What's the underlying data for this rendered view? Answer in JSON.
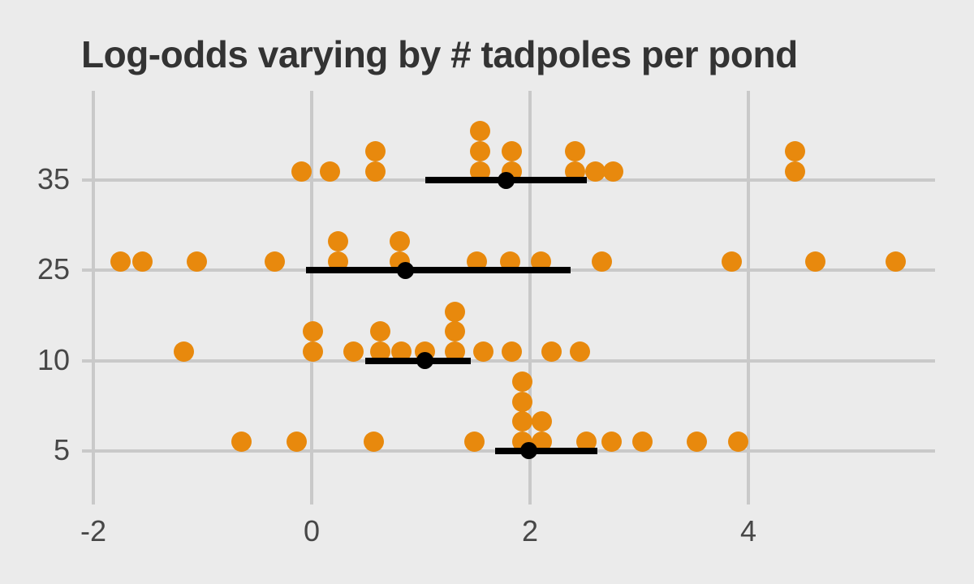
{
  "chart_data": {
    "type": "scatter",
    "subtype": "stacked-dotplot-with-point-intervals",
    "title": "Log-odds varying by # tadpoles per pond",
    "xlabel": "",
    "ylabel": "",
    "xlim": [
      -2.1,
      5.74
    ],
    "x_ticks": [
      "-2",
      "0",
      "2",
      "4"
    ],
    "x_tick_values": [
      -2,
      0,
      2,
      4
    ],
    "y_categories_top_to_bottom": [
      "35",
      "25",
      "10",
      "5"
    ],
    "grid": true,
    "legend": false,
    "colors": {
      "dot": "#E8890D",
      "interval": "#000000",
      "background": "#EBEBEB",
      "gridline": "#C9C9C9",
      "title_text": "#333333",
      "axis_text": "#474747"
    },
    "groups": [
      {
        "pond_size": "35",
        "dots": [
          {
            "x": -0.09,
            "stack": 1
          },
          {
            "x": 0.17,
            "stack": 1
          },
          {
            "x": 0.58,
            "stack": 2
          },
          {
            "x": 1.54,
            "stack": 3
          },
          {
            "x": 1.83,
            "stack": 2
          },
          {
            "x": 2.41,
            "stack": 2
          },
          {
            "x": 2.6,
            "stack": 1
          },
          {
            "x": 2.76,
            "stack": 1
          },
          {
            "x": 4.43,
            "stack": 2
          }
        ],
        "interval": {
          "lower": 1.04,
          "point": 1.78,
          "upper": 2.52
        }
      },
      {
        "pond_size": "25",
        "dots": [
          {
            "x": -1.75,
            "stack": 1
          },
          {
            "x": -1.55,
            "stack": 1
          },
          {
            "x": -1.05,
            "stack": 1
          },
          {
            "x": -0.34,
            "stack": 1
          },
          {
            "x": 0.24,
            "stack": 2
          },
          {
            "x": 0.81,
            "stack": 2
          },
          {
            "x": 1.51,
            "stack": 1
          },
          {
            "x": 1.82,
            "stack": 1
          },
          {
            "x": 2.1,
            "stack": 1
          },
          {
            "x": 2.66,
            "stack": 1
          },
          {
            "x": 3.85,
            "stack": 1
          },
          {
            "x": 4.61,
            "stack": 1
          },
          {
            "x": 5.35,
            "stack": 1
          }
        ],
        "interval": {
          "lower": -0.05,
          "point": 0.86,
          "upper": 2.37
        }
      },
      {
        "pond_size": "10",
        "dots": [
          {
            "x": -1.17,
            "stack": 1
          },
          {
            "x": 0.01,
            "stack": 2
          },
          {
            "x": 0.38,
            "stack": 1
          },
          {
            "x": 0.63,
            "stack": 2
          },
          {
            "x": 0.82,
            "stack": 1
          },
          {
            "x": 1.04,
            "stack": 1
          },
          {
            "x": 1.31,
            "stack": 3
          },
          {
            "x": 1.57,
            "stack": 1
          },
          {
            "x": 1.83,
            "stack": 1
          },
          {
            "x": 2.2,
            "stack": 1
          },
          {
            "x": 2.46,
            "stack": 1
          }
        ],
        "interval": {
          "lower": 0.49,
          "point": 1.04,
          "upper": 1.46
        }
      },
      {
        "pond_size": "5",
        "dots": [
          {
            "x": -0.64,
            "stack": 1
          },
          {
            "x": -0.14,
            "stack": 1
          },
          {
            "x": 0.57,
            "stack": 1
          },
          {
            "x": 1.49,
            "stack": 1
          },
          {
            "x": 1.93,
            "stack": 4
          },
          {
            "x": 2.11,
            "stack": 2
          },
          {
            "x": 2.52,
            "stack": 1
          },
          {
            "x": 2.75,
            "stack": 1
          },
          {
            "x": 3.03,
            "stack": 1
          },
          {
            "x": 3.53,
            "stack": 1
          },
          {
            "x": 3.91,
            "stack": 1
          }
        ],
        "interval": {
          "lower": 1.68,
          "point": 1.99,
          "upper": 2.62
        }
      }
    ]
  }
}
